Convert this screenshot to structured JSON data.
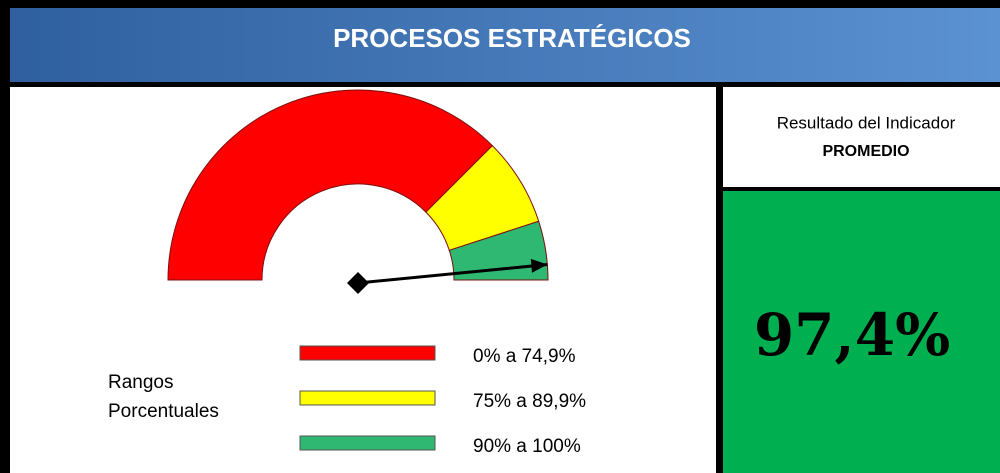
{
  "chart_data": {
    "type": "gauge",
    "title": "PROCESOS ESTRATÉGICOS",
    "indicator_label": "Resultado del Indicador",
    "indicator_name": "PROMEDIO",
    "value": 97.4,
    "value_label": "97,4%",
    "range": [
      0,
      100
    ],
    "legend_title": [
      "Rangos",
      "Porcentuales"
    ],
    "bands": [
      {
        "from": 0,
        "to": 75,
        "color": "#ff0000",
        "label": "0% a 74,9%"
      },
      {
        "from": 75,
        "to": 90,
        "color": "#ffff00",
        "label": "75% a 89,9%"
      },
      {
        "from": 90,
        "to": 100,
        "color": "#2eb872",
        "label": "90% a 100%"
      }
    ]
  }
}
